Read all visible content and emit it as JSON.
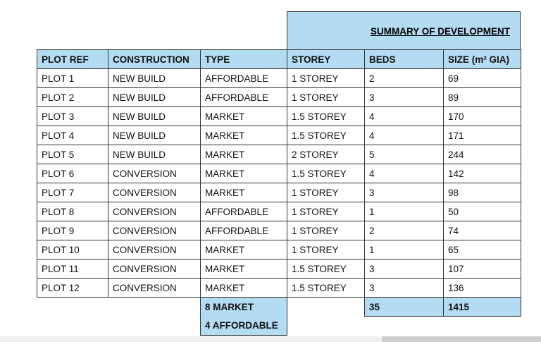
{
  "summary_title": "SUMMARY OF DEVELOPMENT",
  "headers": [
    "PLOT REF",
    "CONSTRUCTION",
    "TYPE",
    "STOREY",
    "BEDS",
    "SIZE (m² GIA)"
  ],
  "rows": [
    [
      "PLOT 1",
      "NEW BUILD",
      "AFFORDABLE",
      "1 STOREY",
      "2",
      "69"
    ],
    [
      "PLOT 2",
      "NEW BUILD",
      "AFFORDABLE",
      "1 STOREY",
      "3",
      "89"
    ],
    [
      "PLOT 3",
      "NEW BUILD",
      "MARKET",
      "1.5 STOREY",
      "4",
      "170"
    ],
    [
      "PLOT 4",
      "NEW BUILD",
      "MARKET",
      "1.5 STOREY",
      "4",
      "171"
    ],
    [
      "PLOT 5",
      "NEW BUILD",
      "MARKET",
      "2 STOREY",
      "5",
      "244"
    ],
    [
      "PLOT 6",
      "CONVERSION",
      "MARKET",
      "1.5 STOREY",
      "4",
      "142"
    ],
    [
      "PLOT 7",
      "CONVERSION",
      "MARKET",
      "1 STOREY",
      "3",
      "98"
    ],
    [
      "PLOT 8",
      "CONVERSION",
      "AFFORDABLE",
      "1 STOREY",
      "1",
      "50"
    ],
    [
      "PLOT 9",
      "CONVERSION",
      "AFFORDABLE",
      "1 STOREY",
      "2",
      "74"
    ],
    [
      "PLOT 10",
      "CONVERSION",
      "MARKET",
      "1 STOREY",
      "1",
      "65"
    ],
    [
      "PLOT 11",
      "CONVERSION",
      "MARKET",
      "1.5 STOREY",
      "3",
      "107"
    ],
    [
      "PLOT 12",
      "CONVERSION",
      "MARKET",
      "1.5 STOREY",
      "3",
      "136"
    ]
  ],
  "totals": {
    "market": "8 MARKET",
    "affordable": "4 AFFORDABLE",
    "beds": "35",
    "size": "1415"
  }
}
